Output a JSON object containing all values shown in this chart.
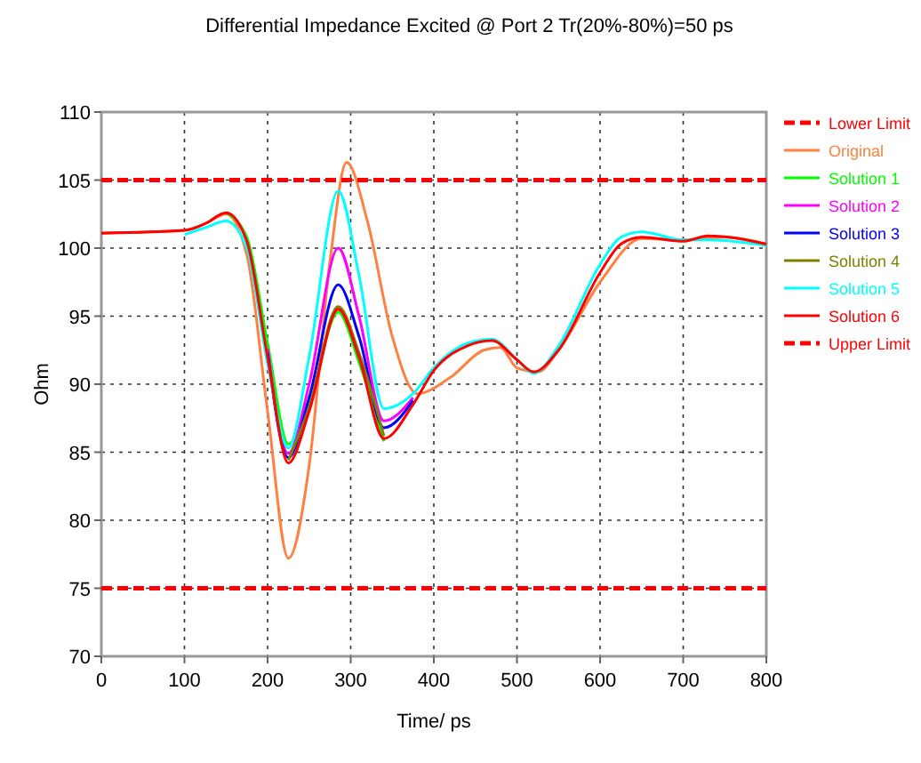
{
  "chart_data": {
    "type": "line",
    "title": "Differential Impedance Excited @ Port 2 Tr(20%-80%)=50 ps",
    "xlabel": "Time/ ps",
    "ylabel": "Ohm",
    "x": [
      0,
      100,
      125,
      150,
      175,
      200,
      225,
      250,
      285,
      310,
      340,
      375,
      400,
      440,
      470,
      500,
      520,
      550,
      600,
      625,
      650,
      700,
      730,
      800
    ],
    "xlim": [
      0,
      800
    ],
    "xticks": [
      0,
      100,
      200,
      300,
      400,
      500,
      600,
      700,
      800
    ],
    "ylim": [
      70,
      110
    ],
    "yticks": [
      70,
      75,
      80,
      85,
      90,
      95,
      100,
      105,
      110
    ],
    "grid": true,
    "legend": "right",
    "line_style": "solid",
    "marker": "none",
    "series": [
      {
        "name": "Lower Limit",
        "color": "#ff0000",
        "line_style": "dashed",
        "x": [
          0,
          800
        ],
        "values": [
          75,
          75
        ]
      },
      {
        "name": "Original",
        "color": "#ff8040",
        "x": [
          0,
          100,
          125,
          150,
          175,
          200,
          225,
          250,
          275,
          295,
          320,
          350,
          380,
          420,
          460,
          480,
          500,
          525,
          550,
          600,
          650,
          700,
          750,
          800
        ],
        "values": [
          101.1,
          101.3,
          101.8,
          102.5,
          99.5,
          88,
          77.2,
          84,
          99,
          106.3,
          102,
          93.5,
          89.3,
          90.5,
          92.5,
          92.7,
          91.2,
          90.9,
          92.5,
          97.5,
          100.7,
          100.6,
          100.8,
          100.3
        ]
      },
      {
        "name": "Solution 1",
        "color": "#00ff00",
        "values": [
          null,
          null,
          null,
          102.6,
          100.8,
          93,
          85.6,
          88.5,
          95.3,
          91.6,
          85.8,
          null,
          null,
          null,
          null,
          null,
          null,
          null,
          null,
          null,
          null,
          null,
          null,
          null
        ]
      },
      {
        "name": "Solution 2",
        "color": "#ff00ff",
        "values": [
          null,
          null,
          null,
          null,
          null,
          92.6,
          84.9,
          90,
          100,
          95,
          87.3,
          89,
          null,
          null,
          null,
          null,
          null,
          null,
          null,
          null,
          null,
          null,
          null,
          null
        ]
      },
      {
        "name": "Solution 3",
        "color": "#0000ff",
        "values": [
          null,
          null,
          null,
          null,
          null,
          92.3,
          84.6,
          89,
          97.3,
          93.5,
          86.8,
          88.8,
          null,
          null,
          null,
          null,
          null,
          null,
          null,
          null,
          null,
          null,
          null,
          null
        ]
      },
      {
        "name": "Solution 4",
        "color": "#808000",
        "values": [
          null,
          null,
          null,
          null,
          null,
          null,
          84.4,
          88.3,
          95.7,
          92.3,
          86.2,
          null,
          null,
          null,
          null,
          null,
          null,
          null,
          null,
          null,
          null,
          null,
          null,
          null
        ]
      },
      {
        "name": "Solution 5",
        "color": "#00ffff",
        "values": [
          null,
          101.0,
          101.5,
          102,
          100,
          91.5,
          85.3,
          92,
          104.2,
          98,
          88.2,
          89.3,
          91.2,
          93,
          93.3,
          91.8,
          90.8,
          92.8,
          98.8,
          100.8,
          101.2,
          100.6,
          100.6,
          100.2
        ]
      },
      {
        "name": "Solution 6",
        "color": "#ff0000",
        "values": [
          101.1,
          101.3,
          101.8,
          102.6,
          100.5,
          92,
          84.2,
          88,
          95.5,
          92,
          86,
          88.5,
          91,
          92.8,
          93.2,
          91.8,
          90.9,
          92.5,
          98.2,
          100.3,
          100.8,
          100.5,
          100.9,
          100.3
        ]
      },
      {
        "name": "Upper Limit",
        "color": "#ff0000",
        "line_style": "dashed",
        "x": [
          0,
          800
        ],
        "values": [
          105,
          105
        ]
      }
    ]
  }
}
